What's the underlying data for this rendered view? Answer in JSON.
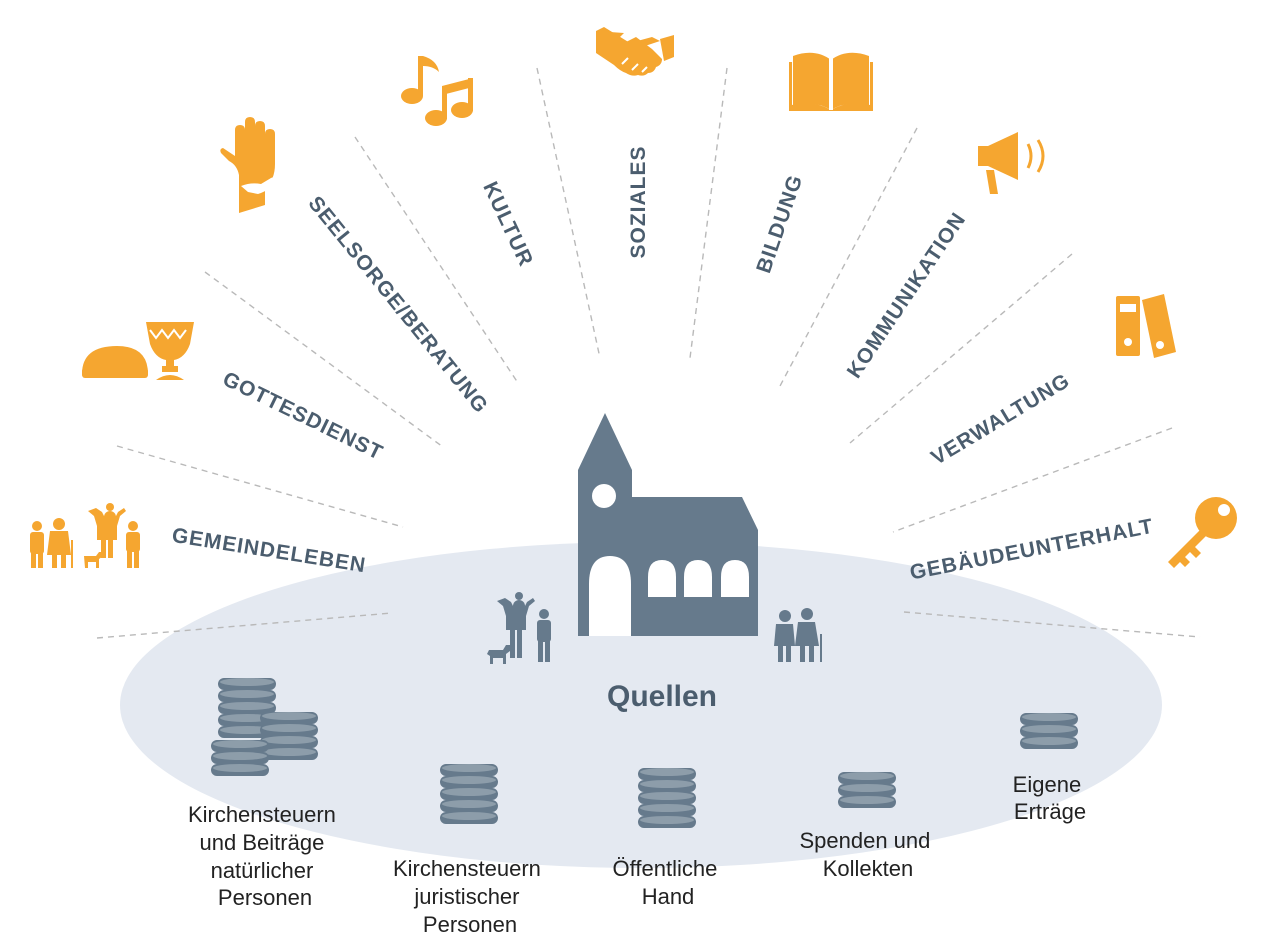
{
  "colors": {
    "accent": "#f5a630",
    "slate": "#667a8c",
    "ellipse": "#e4e9f1",
    "text": "#4b5d6e"
  },
  "center": {
    "label": "Quellen"
  },
  "areas": [
    {
      "id": "gemeindeleben",
      "label": "GEMEINDELEBEN",
      "icon": "family-icon"
    },
    {
      "id": "gottesdienst",
      "label": "GOTTESDIENST",
      "icon": "bread-chalice-icon"
    },
    {
      "id": "seelsorge",
      "label": "SEELSORGE/BERATUNG",
      "icon": "helping-hands-icon"
    },
    {
      "id": "kultur",
      "label": "KULTUR",
      "icon": "music-notes-icon"
    },
    {
      "id": "soziales",
      "label": "SOZIALES",
      "icon": "handshake-icon"
    },
    {
      "id": "bildung",
      "label": "BILDUNG",
      "icon": "open-book-icon"
    },
    {
      "id": "kommunikation",
      "label": "KOMMUNIKATION",
      "icon": "megaphone-icon"
    },
    {
      "id": "verwaltung",
      "label": "VERWALTUNG",
      "icon": "binders-icon"
    },
    {
      "id": "gebaeude",
      "label": "GEBÄUDEUNTERHALT",
      "icon": "key-icon"
    }
  ],
  "sources": [
    {
      "id": "kirchensteuern-natuerlich",
      "lines": [
        "Kirchensteuern",
        "und Beiträge",
        "natürlicher",
        "Personen"
      ]
    },
    {
      "id": "kirchensteuern-juristisch",
      "lines": [
        "Kirchensteuern",
        "juristischer",
        "Personen"
      ]
    },
    {
      "id": "oeffentliche-hand",
      "lines": [
        "Öffentliche",
        "Hand"
      ]
    },
    {
      "id": "spenden",
      "lines": [
        "Spenden und",
        "Kollekten"
      ]
    },
    {
      "id": "ertraege",
      "lines": [
        "Eigene",
        "Erträge"
      ]
    }
  ]
}
